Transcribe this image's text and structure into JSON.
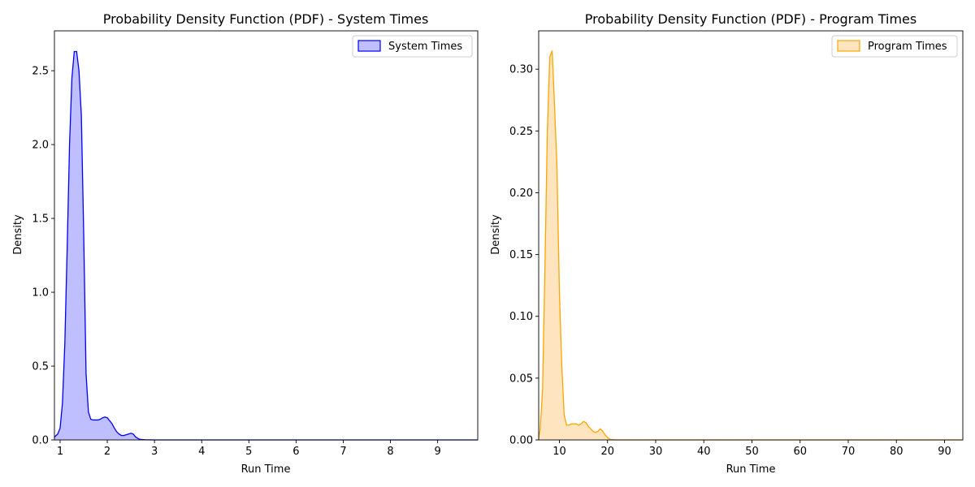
{
  "chart_data": [
    {
      "type": "area",
      "title": "Probability Density Function (PDF) - System Times",
      "xlabel": "Run Time",
      "ylabel": "Density",
      "xlim": [
        0.88,
        9.85
      ],
      "ylim": [
        0,
        2.77
      ],
      "xticks": [
        1,
        2,
        3,
        4,
        5,
        6,
        7,
        8,
        9
      ],
      "yticks": [
        0.0,
        0.5,
        1.0,
        1.5,
        2.0,
        2.5
      ],
      "xtick_labels": [
        "1",
        "2",
        "3",
        "4",
        "5",
        "6",
        "7",
        "8",
        "9"
      ],
      "ytick_labels": [
        "0.0",
        "0.5",
        "1.0",
        "1.5",
        "2.0",
        "2.5"
      ],
      "grid": false,
      "legend_position": "top-right",
      "series": [
        {
          "name": "System Times",
          "line_color": "#0000ff",
          "fill_color": "#bfbfff",
          "x": [
            0.88,
            0.95,
            1.0,
            1.05,
            1.1,
            1.15,
            1.2,
            1.25,
            1.3,
            1.35,
            1.4,
            1.45,
            1.5,
            1.55,
            1.6,
            1.65,
            1.7,
            1.75,
            1.8,
            1.85,
            1.9,
            1.95,
            2.0,
            2.05,
            2.1,
            2.15,
            2.2,
            2.25,
            2.3,
            2.35,
            2.4,
            2.45,
            2.5,
            2.55,
            2.6,
            2.65,
            2.7,
            2.8,
            3.0,
            4.0,
            5.0,
            6.0,
            7.0,
            8.0,
            9.0,
            9.85
          ],
          "y": [
            0.02,
            0.04,
            0.08,
            0.25,
            0.65,
            1.3,
            2.0,
            2.45,
            2.63,
            2.63,
            2.5,
            2.2,
            1.4,
            0.45,
            0.19,
            0.14,
            0.135,
            0.135,
            0.135,
            0.14,
            0.15,
            0.155,
            0.15,
            0.13,
            0.11,
            0.08,
            0.055,
            0.04,
            0.03,
            0.03,
            0.035,
            0.04,
            0.045,
            0.04,
            0.02,
            0.01,
            0.003,
            0.001,
            0.0,
            0.0,
            0.0,
            0.0,
            0.0,
            0.0,
            0.0,
            0.0
          ]
        }
      ]
    },
    {
      "type": "area",
      "title": "Probability Density Function (PDF) - Program Times",
      "xlabel": "Run Time",
      "ylabel": "Density",
      "xlim": [
        5.7,
        93.8
      ],
      "ylim": [
        0,
        0.331
      ],
      "xticks": [
        10,
        20,
        30,
        40,
        50,
        60,
        70,
        80,
        90
      ],
      "yticks": [
        0.0,
        0.05,
        0.1,
        0.15,
        0.2,
        0.25,
        0.3
      ],
      "xtick_labels": [
        "10",
        "20",
        "30",
        "40",
        "50",
        "60",
        "70",
        "80",
        "90"
      ],
      "ytick_labels": [
        "0.00",
        "0.05",
        "0.10",
        "0.15",
        "0.20",
        "0.25",
        "0.30"
      ],
      "grid": false,
      "legend_position": "top-right",
      "series": [
        {
          "name": "Program Times",
          "line_color": "#ffa500",
          "fill_color": "#ffe5bf",
          "x": [
            5.7,
            6.0,
            6.5,
            7.0,
            7.5,
            8.0,
            8.5,
            9.0,
            9.5,
            10.0,
            10.5,
            11.0,
            11.5,
            12.0,
            12.5,
            13.0,
            13.5,
            14.0,
            14.5,
            15.0,
            15.5,
            16.0,
            16.5,
            17.0,
            17.5,
            18.0,
            18.5,
            19.0,
            19.5,
            20.0,
            20.5,
            21.0,
            22.0,
            30.0,
            40.0,
            50.0,
            60.0,
            70.0,
            80.0,
            90.0,
            93.8
          ],
          "y": [
            0.002,
            0.008,
            0.04,
            0.14,
            0.25,
            0.31,
            0.315,
            0.27,
            0.22,
            0.12,
            0.06,
            0.02,
            0.012,
            0.012,
            0.013,
            0.013,
            0.013,
            0.012,
            0.013,
            0.015,
            0.014,
            0.011,
            0.009,
            0.007,
            0.006,
            0.007,
            0.009,
            0.007,
            0.004,
            0.002,
            0.0005,
            0.0002,
            0.0,
            0.0,
            0.0,
            0.0,
            0.0,
            0.0,
            0.0,
            0.0,
            0.0
          ]
        }
      ]
    }
  ]
}
